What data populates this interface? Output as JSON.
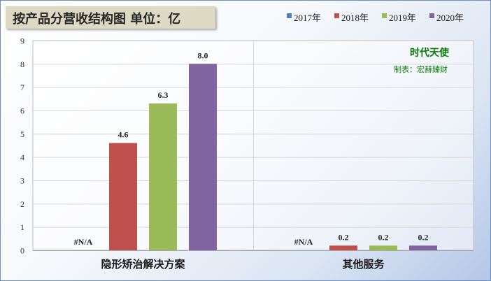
{
  "title": "按产品分营收结构图 单位：亿",
  "watermark": {
    "line1": "时代天使",
    "line2": "制表：宏赫臻财"
  },
  "colors": {
    "2017年": "#4f81bd",
    "2018年": "#c0504d",
    "2019年": "#9bbb59",
    "2020年": "#8064a2",
    "watermark": "#0a7a0a",
    "title_bg": "#ddd9c3"
  },
  "chart_data": {
    "type": "bar",
    "title": "按产品分营收结构图 单位：亿",
    "categories": [
      "隐形矫治解决方案",
      "其他服务"
    ],
    "series": [
      {
        "name": "2017年",
        "values": [
          null,
          null
        ],
        "labels": [
          "#N/A",
          "#N/A"
        ]
      },
      {
        "name": "2018年",
        "values": [
          4.6,
          0.2
        ],
        "labels": [
          "4.6",
          "0.2"
        ]
      },
      {
        "name": "2019年",
        "values": [
          6.3,
          0.2
        ],
        "labels": [
          "6.3",
          "0.2"
        ]
      },
      {
        "name": "2020年",
        "values": [
          8.0,
          0.2
        ],
        "labels": [
          "8.0",
          "0.2"
        ]
      }
    ],
    "ylim": [
      0,
      9
    ],
    "yticks": [
      0,
      1,
      2,
      3,
      4,
      5,
      6,
      7,
      8,
      9
    ],
    "grid": true,
    "legend": "top-right"
  }
}
